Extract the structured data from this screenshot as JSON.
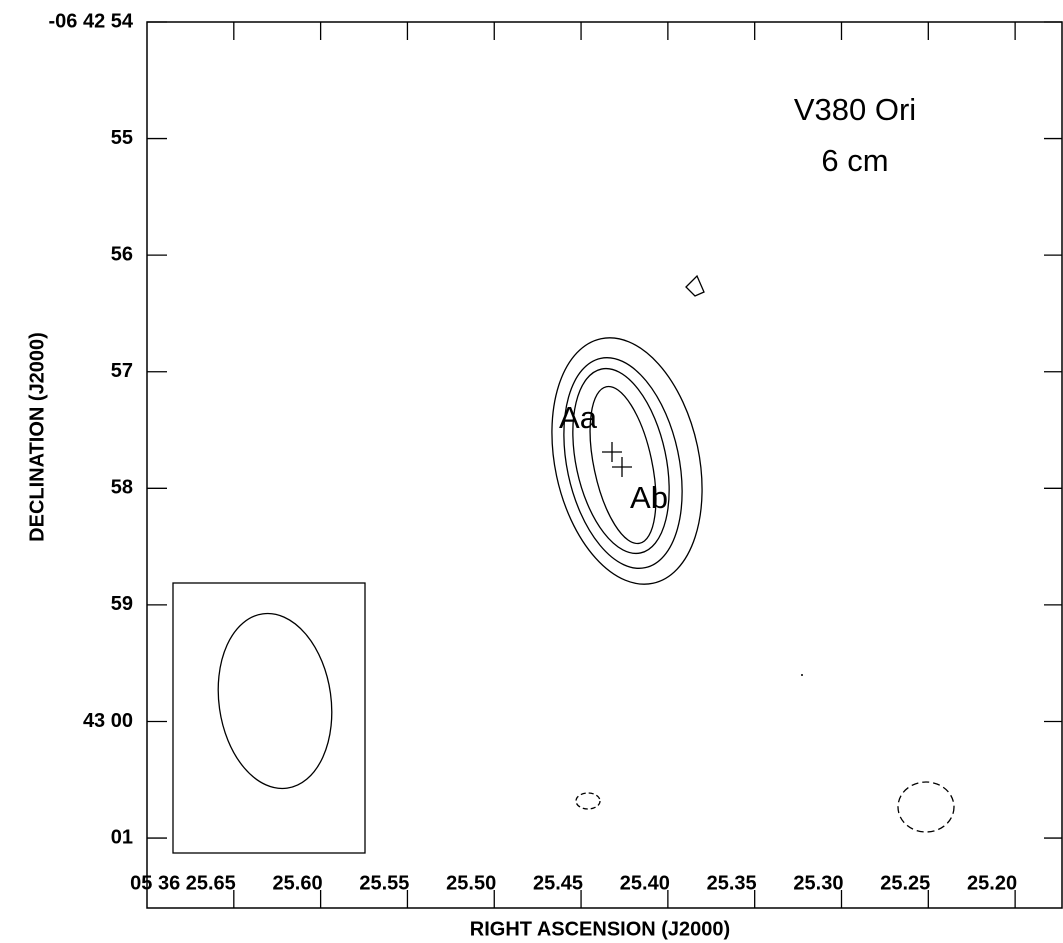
{
  "chart_data": {
    "type": "contour",
    "title": "V380 Ori",
    "subtitle": "6 cm",
    "xlabel": "RIGHT ASCENSION (J2000)",
    "ylabel": "DECLINATION (J2000)",
    "xlim": [
      25.7,
      25.173
    ],
    "ylim": [
      54,
      61.6
    ],
    "xticks": [
      {
        "value": 25.65,
        "label": "05 36 25.65"
      },
      {
        "value": 25.6,
        "label": "25.60"
      },
      {
        "value": 25.55,
        "label": "25.55"
      },
      {
        "value": 25.5,
        "label": "25.50"
      },
      {
        "value": 25.45,
        "label": "25.45"
      },
      {
        "value": 25.4,
        "label": "25.40"
      },
      {
        "value": 25.35,
        "label": "25.35"
      },
      {
        "value": 25.3,
        "label": "25.30"
      },
      {
        "value": 25.25,
        "label": "25.25"
      },
      {
        "value": 25.2,
        "label": "25.20"
      }
    ],
    "yticks": [
      {
        "value": 54,
        "label": "-06 42 54"
      },
      55,
      56,
      57,
      58,
      59,
      {
        "value": 60,
        "label": "43 00"
      },
      {
        "value": 61,
        "label": "01"
      }
    ],
    "annotations": [
      "Aa",
      "Ab"
    ]
  }
}
